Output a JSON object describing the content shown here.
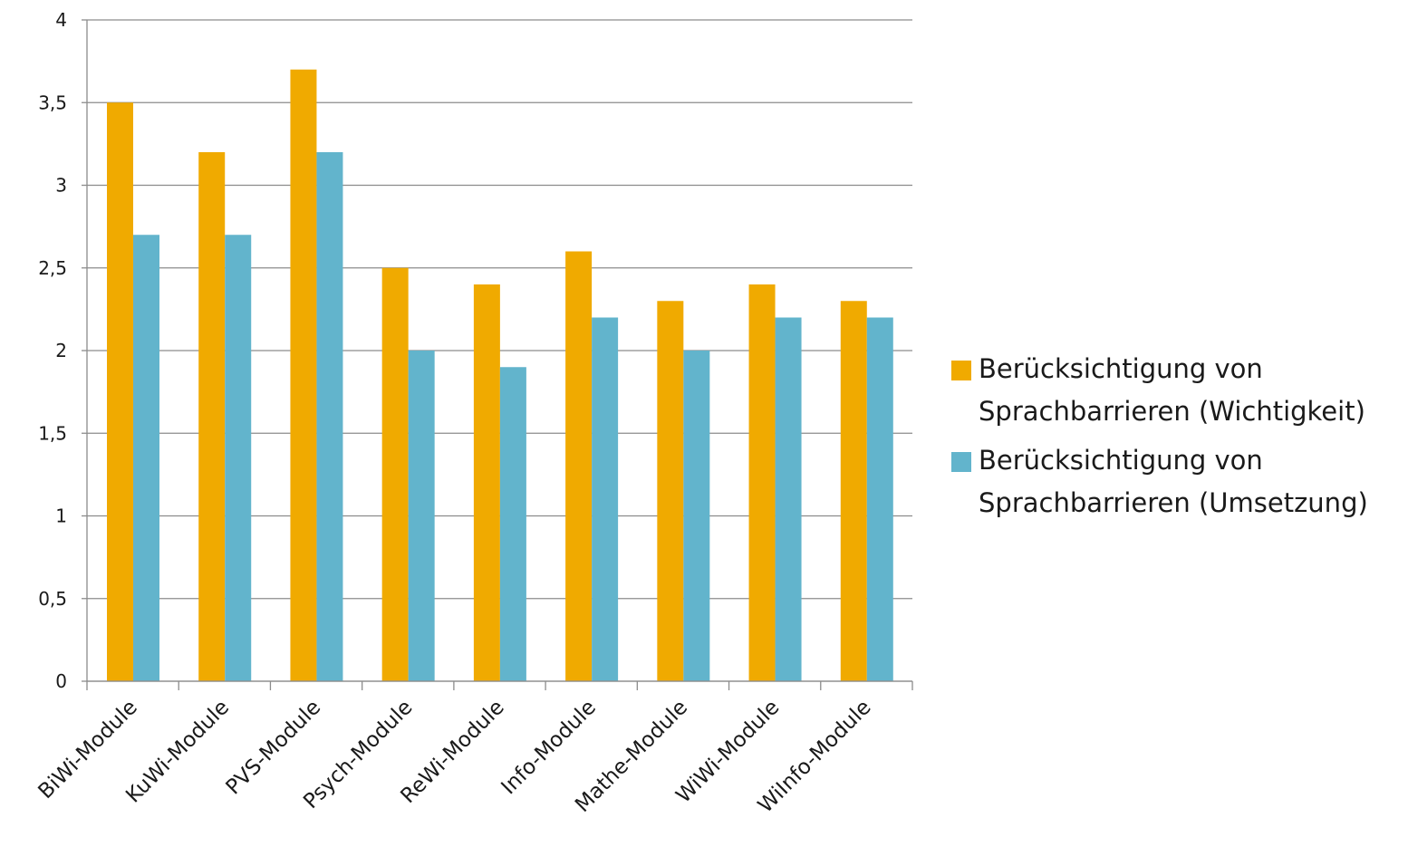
{
  "chart_data": {
    "type": "bar",
    "categories": [
      "BiWi-Module",
      "KuWi-Module",
      "PVS-Module",
      "Psych-Module",
      "ReWi-Module",
      "Info-Module",
      "Mathe-Module",
      "WiWi-Module",
      "WiInfo-Module"
    ],
    "series": [
      {
        "name": "Berücksichtigung von Sprachbarrieren (Wichtigkeit)",
        "color": "#f0aa00",
        "values": [
          3.5,
          3.2,
          3.7,
          2.5,
          2.4,
          2.6,
          2.3,
          2.4,
          2.3
        ]
      },
      {
        "name": "Berücksichtigung von Sprachbarrieren (Umsetzung)",
        "color": "#62b4cc",
        "values": [
          2.7,
          2.7,
          3.2,
          2.0,
          1.9,
          2.2,
          2.0,
          2.2,
          2.2
        ]
      }
    ],
    "ylim": [
      0,
      4
    ],
    "y_ticks": [
      0,
      0.5,
      1,
      1.5,
      2,
      2.5,
      3,
      3.5,
      4
    ],
    "y_tick_labels": [
      "0",
      "0,5",
      "1",
      "1,5",
      "2",
      "2,5",
      "3",
      "3,5",
      "4"
    ],
    "grid": true,
    "legend_position": "right",
    "title": "",
    "xlabel": "",
    "ylabel": ""
  }
}
